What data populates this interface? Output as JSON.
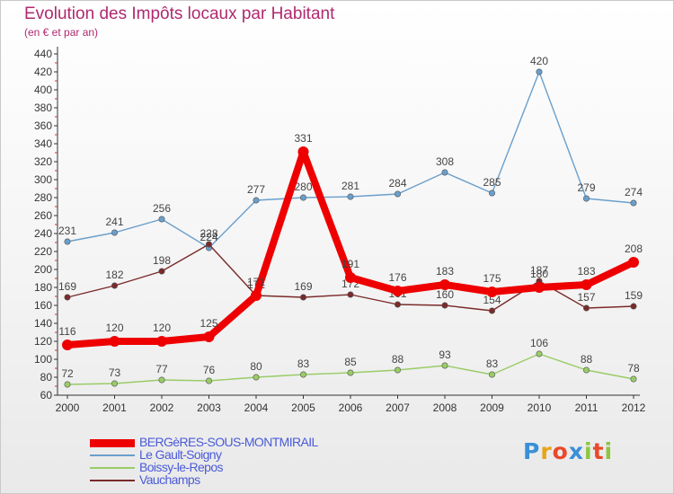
{
  "title": "Evolution des Impôts locaux par Habitant",
  "subtitle": "(en € et par an)",
  "logo": {
    "text": "Proxiti",
    "colors": [
      "#3a8fd8",
      "#e8a317",
      "#e84a2a",
      "#3a8fd8",
      "#8cc63f",
      "#e84a2a",
      "#8cc63f"
    ]
  },
  "chart_data": {
    "type": "line",
    "title": "Evolution des Impôts locaux par Habitant",
    "subtitle": "(en € et par an)",
    "xlabel": "",
    "ylabel": "",
    "x": [
      "2000",
      "2001",
      "2002",
      "2003",
      "2004",
      "2005",
      "2006",
      "2007",
      "2008",
      "2009",
      "2010",
      "2011",
      "2012"
    ],
    "ylim": [
      60,
      440
    ],
    "yticks": [
      60,
      80,
      100,
      120,
      140,
      160,
      180,
      200,
      220,
      240,
      260,
      280,
      300,
      320,
      340,
      360,
      380,
      400,
      420,
      440
    ],
    "grid": false,
    "legend_position": "bottom-left",
    "series": [
      {
        "name": "BERGèRES-SOUS-MONTMIRAIL",
        "color": "#ee0000",
        "label_color": "#444444",
        "weight": "thick",
        "values": [
          116,
          120,
          120,
          125,
          171,
          331,
          191,
          176,
          183,
          175,
          180,
          183,
          208
        ]
      },
      {
        "name": "Le Gault-Soigny",
        "color": "#6a9fcc",
        "label_color": "#444444",
        "weight": "thin",
        "values": [
          231,
          241,
          256,
          224,
          277,
          280,
          281,
          284,
          308,
          285,
          420,
          279,
          274
        ]
      },
      {
        "name": "Boissy-le-Repos",
        "color": "#99cc66",
        "label_color": "#444444",
        "weight": "thin",
        "values": [
          72,
          73,
          77,
          76,
          80,
          83,
          85,
          88,
          93,
          83,
          106,
          88,
          78
        ]
      },
      {
        "name": "Vauchamps",
        "color": "#7a2a2a",
        "label_color": "#444444",
        "weight": "thin",
        "values": [
          169,
          182,
          198,
          228,
          171,
          169,
          172,
          161,
          160,
          154,
          187,
          157,
          159
        ]
      }
    ]
  },
  "legend_label_color": "#4a5bd8"
}
